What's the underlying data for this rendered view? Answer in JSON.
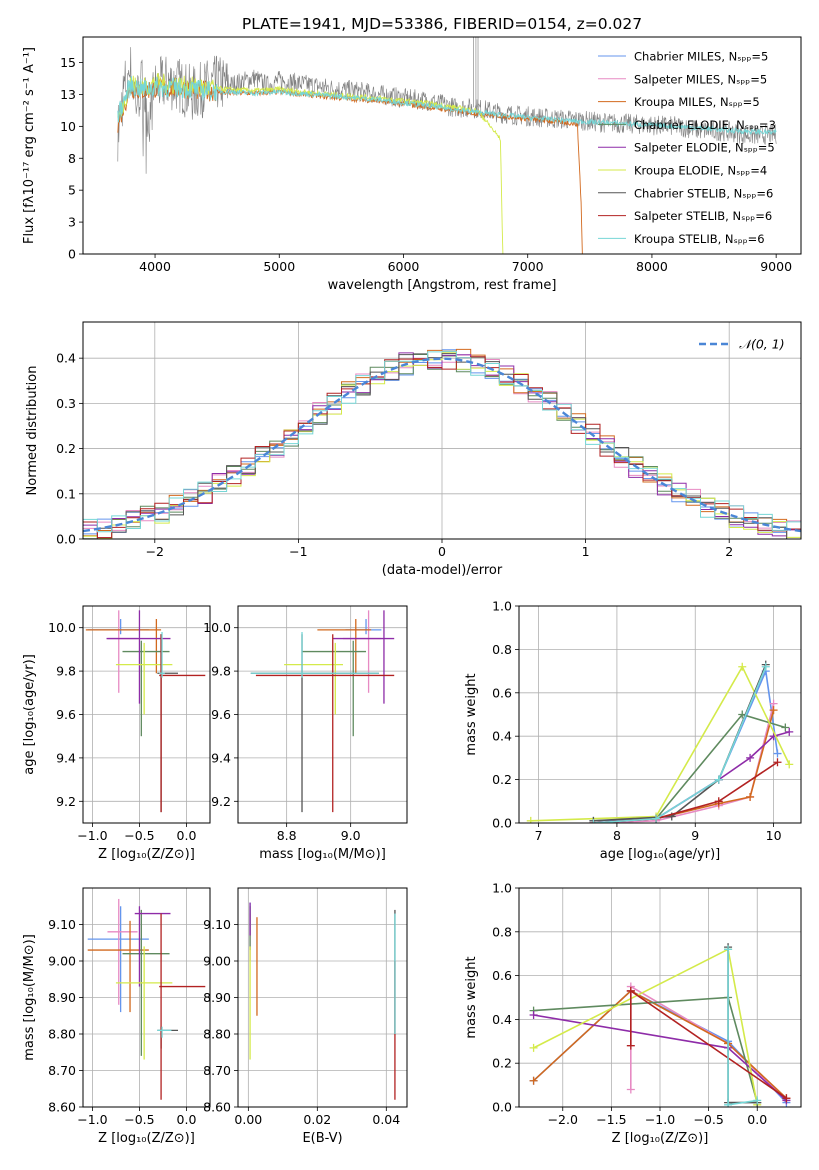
{
  "figure_title": "PLATE=1941, MJD=53386, FIBERID=0154, z=0.027",
  "model_colors": [
    "#6495ed",
    "#e78ac3",
    "#d2691e",
    "#5f8a5f",
    "#8e2ca8",
    "#d4ea4a",
    "#555555",
    "#b22222",
    "#76d6d6"
  ],
  "chart_data": [
    {
      "id": "spectrum",
      "type": "line",
      "title": "PLATE=1941, MJD=53386, FIBERID=0154, z=0.027",
      "xlabel": "wavelength [Angstrom, rest frame]",
      "ylabel": "Flux [fλ10⁻¹⁷ erg cm⁻² s⁻¹ A⁻¹]",
      "xlim": [
        3420,
        9200
      ],
      "ylim": [
        0,
        17
      ],
      "xticks": [
        4000,
        5000,
        6000,
        7000,
        8000,
        9000
      ],
      "yticks": [
        0.0,
        2.5,
        5.0,
        7.5,
        10.0,
        12.5,
        15.0
      ],
      "legend": {
        "placement": "top-right",
        "entries": [
          "Chabrier MILES, Nₛₚₚ=5",
          "Salpeter MILES, Nₛₚₚ=5",
          "Kroupa MILES, Nₛₚₚ=5",
          "Chabrier ELODIE, Nₛₚₚ=3",
          "Salpeter ELODIE, Nₛₚₚ=5",
          "Kroupa ELODIE, Nₛₚₚ=4",
          "Chabrier STELIB, Nₛₚₚ=6",
          "Salpeter STELIB, Nₛₚₚ=6",
          "Kroupa STELIB, Nₛₚₚ=6"
        ]
      },
      "data_spectrum": {
        "x": [
          3700,
          3750,
          3800,
          3850,
          3900,
          3950,
          4000,
          4100,
          4200,
          4300,
          4400,
          4500,
          4600,
          4700,
          4800,
          4900,
          5000,
          5200,
          5400,
          5600,
          5800,
          6000,
          6200,
          6400,
          6600,
          6800,
          7000,
          7200,
          7400,
          7600,
          7800,
          8000,
          8200,
          8400,
          8600,
          8800,
          9000
        ],
        "y": [
          9.5,
          13.0,
          14.5,
          12.0,
          13.5,
          10.5,
          13.0,
          13.5,
          13.2,
          12.5,
          13.0,
          13.4,
          13.2,
          13.5,
          13.8,
          13.2,
          13.6,
          13.3,
          13.0,
          12.8,
          12.5,
          12.2,
          12.0,
          11.5,
          11.4,
          11.0,
          10.8,
          10.6,
          10.5,
          10.3,
          10.2,
          10.1,
          10.0,
          9.7,
          9.6,
          9.3,
          9.4
        ]
      },
      "model_curves": [
        {
          "x": [
            3700,
            3800,
            3900,
            4000,
            4200,
            4400,
            4600,
            4800,
            5000,
            5400,
            5800,
            6200,
            6600,
            7000,
            7400,
            7430,
            7440
          ],
          "y": [
            10.2,
            13.0,
            12.8,
            13.0,
            13.0,
            12.8,
            12.6,
            12.6,
            12.7,
            12.3,
            12.0,
            11.5,
            11.0,
            10.6,
            10.2,
            4.0,
            0
          ]
        },
        {
          "x": [
            3700,
            3800,
            3900,
            4000,
            4200,
            4400,
            4600,
            4800,
            5000,
            5400,
            5800,
            6200,
            6600,
            6780,
            6800
          ],
          "y": [
            10.5,
            13.4,
            13.0,
            13.4,
            13.2,
            13.0,
            12.9,
            12.8,
            12.9,
            12.5,
            12.2,
            11.8,
            11.2,
            9.0,
            0
          ]
        },
        {
          "x": [
            3700,
            3800,
            3900,
            4000,
            4200,
            4400,
            4600,
            4800,
            5000,
            5400,
            5800,
            6200,
            6600,
            7000,
            7400,
            7800,
            8200,
            8600,
            9000
          ],
          "y": [
            10.8,
            13.2,
            12.9,
            13.1,
            13.0,
            12.8,
            12.7,
            12.6,
            12.7,
            12.4,
            12.1,
            11.6,
            11.1,
            10.7,
            10.4,
            10.2,
            10.0,
            9.7,
            9.5
          ]
        }
      ]
    },
    {
      "id": "residuals",
      "type": "step",
      "xlabel": "(data-model)/error",
      "ylabel": "Normed distribution",
      "xlim": [
        -2.5,
        2.5
      ],
      "ylim": [
        0,
        0.48
      ],
      "xticks": [
        -2,
        -1,
        0,
        1,
        2
      ],
      "yticks": [
        0.0,
        0.1,
        0.2,
        0.3,
        0.4
      ],
      "legend": {
        "placement": "top-right",
        "entries": [
          "𝒩(0, 1)"
        ]
      },
      "gaussian": {
        "mean": 0,
        "sigma": 1
      }
    },
    {
      "id": "age-vs-Z",
      "type": "scatter",
      "xlabel": "Z [log₁₀(Z/Z⊙)]",
      "ylabel": "age  [log₁₀(age/yr)]",
      "xlim": [
        -1.1,
        0.25
      ],
      "ylim": [
        9.1,
        10.1
      ],
      "xticks": [
        -1.0,
        -0.5,
        0.0
      ],
      "yticks": [
        9.2,
        9.4,
        9.6,
        9.8,
        10.0
      ],
      "points": [
        {
          "x": -0.7,
          "y": 9.99,
          "xerr": [
            0.35,
            0.3
          ],
          "yerr": [
            0.02,
            0.05
          ]
        },
        {
          "x": -0.72,
          "y": 9.95,
          "xerr": [
            0.12,
            0.2
          ],
          "yerr": [
            0.25,
            0.13
          ]
        },
        {
          "x": -0.32,
          "y": 9.99,
          "xerr": [
            0.75,
            0.05
          ],
          "yerr": [
            0.2,
            0.05
          ]
        },
        {
          "x": -0.48,
          "y": 9.89,
          "xerr": [
            0.2,
            0.3
          ],
          "yerr": [
            0.39,
            0.05
          ]
        },
        {
          "x": -0.5,
          "y": 9.95,
          "xerr": [
            0.35,
            0.33
          ],
          "yerr": [
            0.3,
            0.13
          ]
        },
        {
          "x": -0.45,
          "y": 9.83,
          "xerr": [
            0.3,
            0.3
          ],
          "yerr": [
            0.23,
            0.1
          ]
        },
        {
          "x": -0.27,
          "y": 9.79,
          "xerr": [
            0.04,
            0.18
          ],
          "yerr": [
            0.64,
            0.18
          ]
        },
        {
          "x": -0.27,
          "y": 9.78,
          "xerr": [
            0.02,
            0.47
          ],
          "yerr": [
            0.63,
            0.19
          ]
        },
        {
          "x": -0.26,
          "y": 9.79,
          "xerr": [
            0.03,
            0.03
          ],
          "yerr": [
            0.02,
            0.19
          ]
        }
      ]
    },
    {
      "id": "age-vs-mass",
      "type": "scatter",
      "xlabel": "mass [log₁₀(M/M⊙)]",
      "ylabel": "",
      "xlim": [
        8.56,
        9.22
      ],
      "ylim": [
        9.1,
        10.1
      ],
      "xticks": [
        8.75,
        9.0
      ],
      "yticks": [
        9.2,
        9.4,
        9.6,
        9.8,
        10.0
      ],
      "points": [
        {
          "x": 9.06,
          "y": 9.99,
          "xerr": [
            0.08,
            0.06
          ],
          "yerr": [
            0.02,
            0.05
          ]
        },
        {
          "x": 9.07,
          "y": 9.95,
          "xerr": [
            0.1,
            0.05
          ],
          "yerr": [
            0.25,
            0.13
          ]
        },
        {
          "x": 9.02,
          "y": 9.99,
          "xerr": [
            0.15,
            0.06
          ],
          "yerr": [
            0.2,
            0.05
          ]
        },
        {
          "x": 9.01,
          "y": 9.89,
          "xerr": [
            0.2,
            0.05
          ],
          "yerr": [
            0.39,
            0.05
          ]
        },
        {
          "x": 9.13,
          "y": 9.95,
          "xerr": [
            0.2,
            0.04
          ],
          "yerr": [
            0.3,
            0.13
          ]
        },
        {
          "x": 8.94,
          "y": 9.83,
          "xerr": [
            0.2,
            0.03
          ],
          "yerr": [
            0.23,
            0.1
          ]
        },
        {
          "x": 8.81,
          "y": 9.79,
          "xerr": [
            0.2,
            0.3
          ],
          "yerr": [
            0.64,
            0.18
          ]
        },
        {
          "x": 8.93,
          "y": 9.78,
          "xerr": [
            0.3,
            0.24
          ],
          "yerr": [
            0.63,
            0.19
          ]
        },
        {
          "x": 8.81,
          "y": 9.79,
          "xerr": [
            0.2,
            0.3
          ],
          "yerr": [
            0.02,
            0.19
          ]
        }
      ]
    },
    {
      "id": "massweight-vs-age",
      "type": "line",
      "xlabel": "age  [log₁₀(age/yr)]",
      "ylabel": "mass weight",
      "xlim": [
        6.75,
        10.35
      ],
      "ylim": [
        0,
        1.0
      ],
      "xticks": [
        7,
        8,
        9,
        10
      ],
      "yticks": [
        0.0,
        0.2,
        0.4,
        0.6,
        0.8,
        1.0
      ],
      "series": [
        {
          "x": [
            7.7,
            8.5,
            9.3,
            9.9,
            10.05
          ],
          "y": [
            0.01,
            0.02,
            0.2,
            0.7,
            0.32
          ]
        },
        {
          "x": [
            7.7,
            8.5,
            9.3,
            9.7,
            10.0
          ],
          "y": [
            0.0,
            0.01,
            0.08,
            0.12,
            0.55
          ]
        },
        {
          "x": [
            7.7,
            8.5,
            9.3,
            9.7,
            10.0
          ],
          "y": [
            0.0,
            0.02,
            0.09,
            0.12,
            0.52
          ]
        },
        {
          "x": [
            8.5,
            9.6,
            10.15
          ],
          "y": [
            0.02,
            0.5,
            0.44
          ]
        },
        {
          "x": [
            7.7,
            8.5,
            9.3,
            9.7,
            10.0,
            10.2
          ],
          "y": [
            0.0,
            0.02,
            0.2,
            0.3,
            0.4,
            0.42
          ]
        },
        {
          "x": [
            6.9,
            8.5,
            9.6,
            10.2
          ],
          "y": [
            0.01,
            0.03,
            0.72,
            0.27
          ]
        },
        {
          "x": [
            7.7,
            8.7,
            9.3,
            9.9
          ],
          "y": [
            0.01,
            0.03,
            0.2,
            0.73
          ]
        },
        {
          "x": [
            7.7,
            8.5,
            9.3,
            10.05
          ],
          "y": [
            0.0,
            0.02,
            0.1,
            0.28
          ]
        },
        {
          "x": [
            7.7,
            8.5,
            9.3,
            9.9
          ],
          "y": [
            0.0,
            0.02,
            0.2,
            0.72
          ]
        }
      ]
    },
    {
      "id": "mass-vs-Z",
      "type": "scatter",
      "xlabel": "Z [log₁₀(Z/Z⊙)]",
      "ylabel": "mass [log₁₀(M/M⊙)]",
      "xlim": [
        -1.1,
        0.25
      ],
      "ylim": [
        8.6,
        9.2
      ],
      "xticks": [
        -1.0,
        -0.5,
        0.0
      ],
      "yticks": [
        8.6,
        8.7,
        8.8,
        8.9,
        9.0,
        9.1
      ],
      "points": [
        {
          "x": -0.7,
          "y": 9.06,
          "xerr": [
            0.35,
            0.3
          ],
          "yerr": [
            0.2,
            0.09
          ]
        },
        {
          "x": -0.72,
          "y": 9.08,
          "xerr": [
            0.12,
            0.2
          ],
          "yerr": [
            0.2,
            0.09
          ]
        },
        {
          "x": -0.6,
          "y": 9.03,
          "xerr": [
            0.45,
            0.2
          ],
          "yerr": [
            0.17,
            0.08
          ]
        },
        {
          "x": -0.48,
          "y": 9.02,
          "xerr": [
            0.2,
            0.3
          ],
          "yerr": [
            0.28,
            0.12
          ]
        },
        {
          "x": -0.5,
          "y": 9.13,
          "xerr": [
            0.05,
            0.33
          ],
          "yerr": [
            0.2,
            0.02
          ]
        },
        {
          "x": -0.45,
          "y": 8.94,
          "xerr": [
            0.3,
            0.3
          ],
          "yerr": [
            0.21,
            0.1
          ]
        },
        {
          "x": -0.27,
          "y": 8.81,
          "xerr": [
            0.04,
            0.18
          ],
          "yerr": [
            0.05,
            0.01
          ]
        },
        {
          "x": -0.27,
          "y": 8.93,
          "xerr": [
            0.02,
            0.47
          ],
          "yerr": [
            0.31,
            0.2
          ]
        },
        {
          "x": -0.26,
          "y": 8.81,
          "xerr": [
            0.05,
            0.1
          ],
          "yerr": [
            0.02,
            0.01
          ]
        }
      ]
    },
    {
      "id": "mass-vs-EBV",
      "type": "scatter",
      "xlabel": "E(B-V)",
      "ylabel": "",
      "xlim": [
        -0.003,
        0.046
      ],
      "ylim": [
        8.6,
        9.2
      ],
      "xticks": [
        0.0,
        0.02,
        0.04
      ],
      "yticks": [
        8.6,
        8.7,
        8.8,
        8.9,
        9.0,
        9.1
      ],
      "points": [
        {
          "x": 0.0005,
          "y": 9.12,
          "xerr": [
            0,
            0
          ],
          "yerr": [
            0.05,
            0.04
          ]
        },
        {
          "x": 0.0005,
          "y": 9.08,
          "xerr": [
            0,
            0
          ],
          "yerr": [
            0.08,
            0.05
          ]
        },
        {
          "x": 0.0025,
          "y": 9.02,
          "xerr": [
            0,
            0
          ],
          "yerr": [
            0.17,
            0.1
          ]
        },
        {
          "x": 0.0005,
          "y": 9.1,
          "xerr": [
            0,
            0
          ],
          "yerr": [
            0.07,
            0.05
          ]
        },
        {
          "x": 0.0005,
          "y": 9.13,
          "xerr": [
            0,
            0
          ],
          "yerr": [
            0.06,
            0.03
          ]
        },
        {
          "x": 0.0005,
          "y": 8.94,
          "xerr": [
            0,
            0
          ],
          "yerr": [
            0.21,
            0.1
          ]
        },
        {
          "x": 0.0425,
          "y": 9.0,
          "xerr": [
            0,
            0
          ],
          "yerr": [
            0.2,
            0.14
          ]
        },
        {
          "x": 0.0425,
          "y": 8.8,
          "xerr": [
            0,
            0
          ],
          "yerr": [
            0.18,
            0.2
          ]
        },
        {
          "x": 0.0425,
          "y": 9.0,
          "xerr": [
            0,
            0
          ],
          "yerr": [
            0.2,
            0.13
          ]
        }
      ]
    },
    {
      "id": "massweight-vs-Z",
      "type": "line",
      "xlabel": "Z [log₁₀(Z/Z⊙)]",
      "ylabel": "mass weight",
      "xlim": [
        -2.45,
        0.45
      ],
      "ylim": [
        0,
        1.0
      ],
      "xticks": [
        -2.0,
        -1.5,
        -1.0,
        -0.5,
        0.0
      ],
      "yticks": [
        0.0,
        0.2,
        0.4,
        0.6,
        0.8,
        1.0
      ],
      "series": [
        {
          "x": [
            -2.3,
            -1.3,
            -0.3,
            0.3
          ],
          "y": [
            0.12,
            0.53,
            0.3,
            0.02
          ]
        },
        {
          "x": [
            -1.3,
            -1.3,
            -0.3,
            0.3
          ],
          "y": [
            0.08,
            0.55,
            0.29,
            0.03
          ]
        },
        {
          "x": [
            -2.3,
            -1.3,
            -0.3,
            0.3
          ],
          "y": [
            0.12,
            0.53,
            0.29,
            0.04
          ]
        },
        {
          "x": [
            -2.3,
            -0.3,
            0.0
          ],
          "y": [
            0.44,
            0.5,
            0.02
          ]
        },
        {
          "x": [
            -2.3,
            -0.3,
            0.3
          ],
          "y": [
            0.42,
            0.27,
            0.03
          ]
        },
        {
          "x": [
            -2.3,
            -0.3,
            0.0
          ],
          "y": [
            0.27,
            0.72,
            0.01
          ]
        },
        {
          "x": [
            -0.3,
            -0.3,
            0.0
          ],
          "y": [
            0.73,
            0.02,
            0.02
          ]
        },
        {
          "x": [
            -1.3,
            -1.3,
            0.3
          ],
          "y": [
            0.28,
            0.53,
            0.04
          ]
        },
        {
          "x": [
            -0.3,
            -0.3,
            0.0
          ],
          "y": [
            0.72,
            0.01,
            0.03
          ]
        }
      ]
    }
  ]
}
